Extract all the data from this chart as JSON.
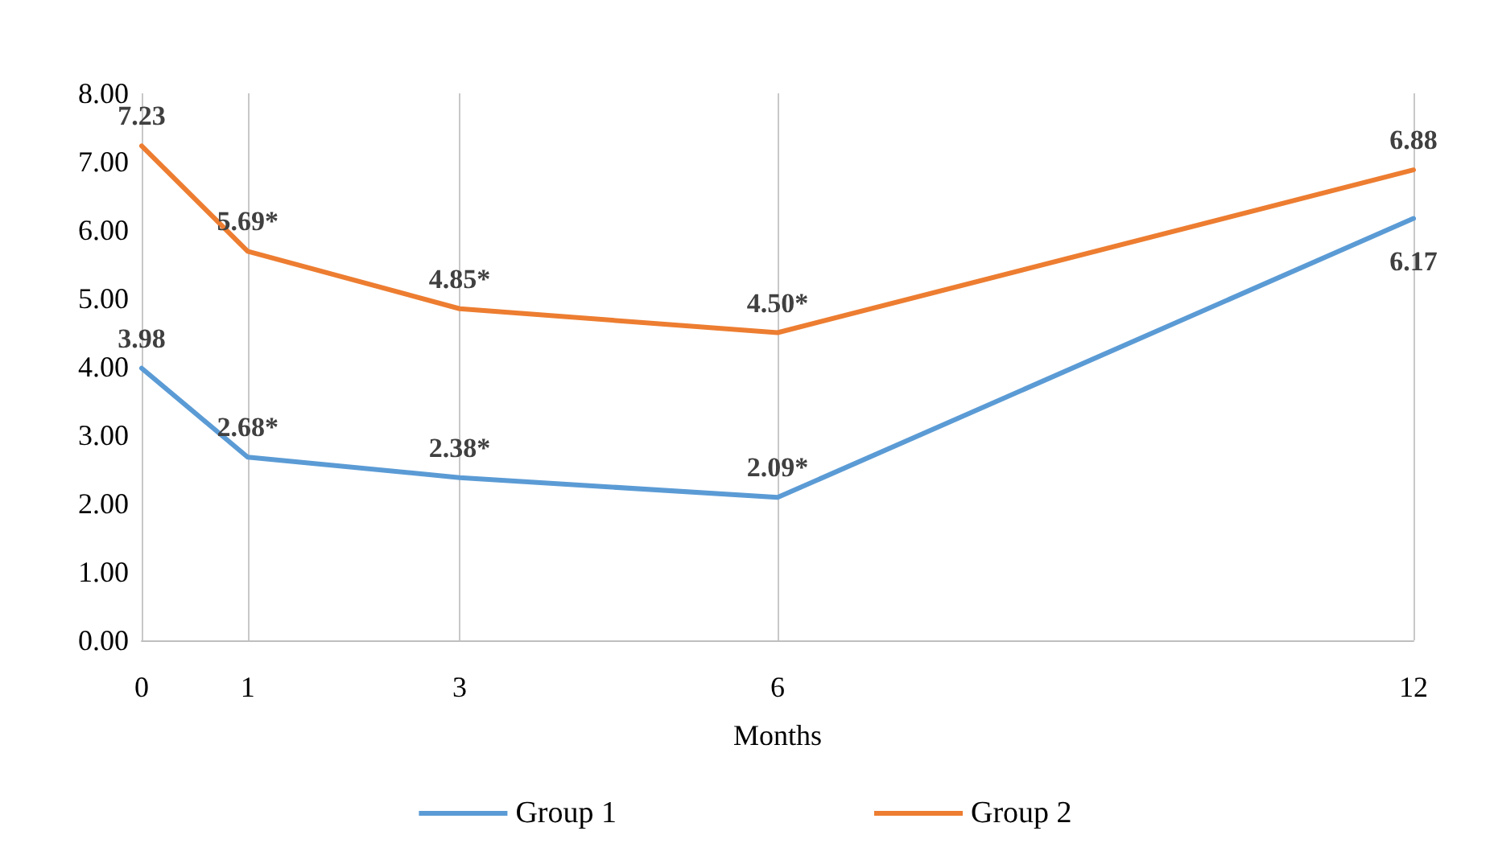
{
  "chart_data": {
    "type": "line",
    "xlabel": "Months",
    "x": [
      0,
      1,
      3,
      6,
      12
    ],
    "xlim": [
      0,
      12
    ],
    "xticks": [
      0,
      1,
      3,
      6,
      12
    ],
    "ylim": [
      0,
      8
    ],
    "yticks": [
      {
        "value": 0,
        "label": "0.00"
      },
      {
        "value": 1,
        "label": "1.00"
      },
      {
        "value": 2,
        "label": "2.00"
      },
      {
        "value": 3,
        "label": "3.00"
      },
      {
        "value": 4,
        "label": "4.00"
      },
      {
        "value": 5,
        "label": "5.00"
      },
      {
        "value": 6,
        "label": "6.00"
      },
      {
        "value": 7,
        "label": "7.00"
      },
      {
        "value": 8,
        "label": "8.00"
      }
    ],
    "series": [
      {
        "name": "Group 1",
        "color": "#5b9bd5",
        "values": [
          3.98,
          2.68,
          2.38,
          2.09,
          6.17
        ],
        "value_labels": [
          "3.98",
          "2.68*",
          "2.38*",
          "2.09*",
          "6.17"
        ]
      },
      {
        "name": "Group 2",
        "color": "#ed7d31",
        "values": [
          7.23,
          5.69,
          4.85,
          4.5,
          6.88
        ],
        "value_labels": [
          "7.23",
          "5.69*",
          "4.85*",
          "4.50*",
          "6.88"
        ]
      }
    ],
    "grid": "x",
    "legend": "bottom",
    "marker": "none",
    "line_style": "solid"
  }
}
